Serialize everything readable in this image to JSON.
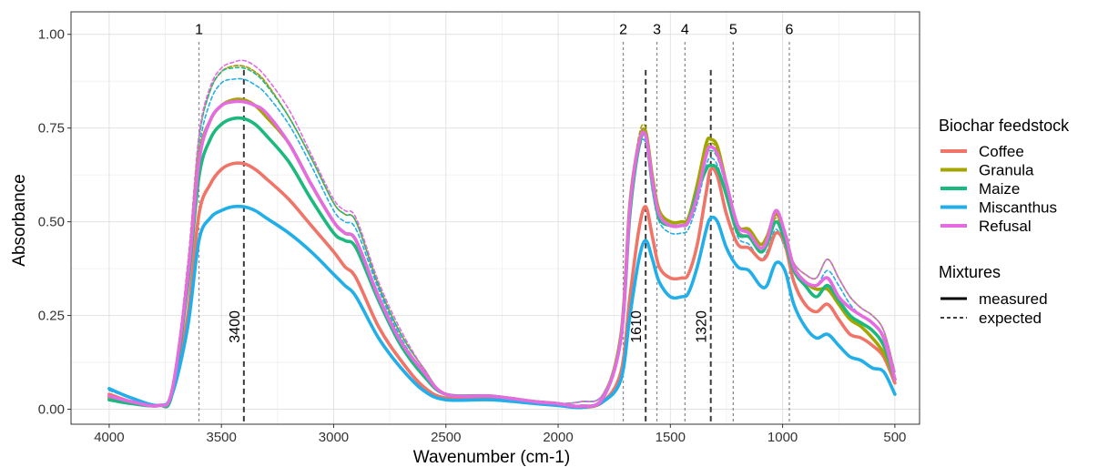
{
  "chart_data": {
    "type": "line",
    "title": "",
    "xlabel": "Wavenumber (cm-1)",
    "ylabel": "Absorbance",
    "xlim": [
      4170,
      390
    ],
    "ylim": [
      -0.04,
      1.06
    ],
    "x_reversed": true,
    "grid": true,
    "x_ticks": [
      4000,
      3500,
      3000,
      2500,
      2000,
      1500,
      1000,
      500
    ],
    "y_ticks": [
      0,
      0.25,
      0.5,
      0.75,
      1.0
    ],
    "x_tick_labels": [
      "4000",
      "3500",
      "3000",
      "2500",
      "2000",
      "1500",
      "1000",
      "500"
    ],
    "y_tick_labels": [
      "0.00",
      "0.25",
      "0.50",
      "0.75",
      "1.00"
    ],
    "legend_placement": "right",
    "legend": {
      "color_title": "Biochar feedstock",
      "linetype_title": "Mixtures",
      "linetypes": [
        {
          "label": "measured",
          "style": "solid"
        },
        {
          "label": "expected",
          "style": "dashed"
        }
      ]
    },
    "vlines_numbered": [
      {
        "label": "1",
        "x": 3600
      },
      {
        "label": "2",
        "x": 1710
      },
      {
        "label": "3",
        "x": 1560
      },
      {
        "label": "4",
        "x": 1435
      },
      {
        "label": "5",
        "x": 1220
      },
      {
        "label": "6",
        "x": 970
      }
    ],
    "vlines_peaks": [
      {
        "label": "3400",
        "x": 3400
      },
      {
        "label": "1610",
        "x": 1610
      },
      {
        "label": "1320",
        "x": 1320
      }
    ],
    "x": [
      4000,
      3900,
      3780,
      3720,
      3650,
      3600,
      3550,
      3500,
      3450,
      3400,
      3350,
      3300,
      3200,
      3100,
      3000,
      2950,
      2900,
      2800,
      2700,
      2600,
      2500,
      2300,
      2100,
      2000,
      1900,
      1800,
      1720,
      1680,
      1640,
      1610,
      1580,
      1550,
      1500,
      1450,
      1420,
      1380,
      1340,
      1320,
      1290,
      1250,
      1200,
      1150,
      1100,
      1070,
      1030,
      990,
      950,
      900,
      850,
      800,
      750,
      700,
      650,
      600,
      550,
      500
    ],
    "series": [
      {
        "name": "Coffee",
        "color": "#F07468",
        "kind": "measured",
        "values": [
          0.04,
          0.02,
          0.01,
          0.04,
          0.25,
          0.52,
          0.6,
          0.64,
          0.655,
          0.655,
          0.64,
          0.615,
          0.56,
          0.49,
          0.42,
          0.38,
          0.35,
          0.22,
          0.13,
          0.06,
          0.03,
          0.03,
          0.02,
          0.015,
          0.005,
          0.02,
          0.1,
          0.3,
          0.48,
          0.54,
          0.46,
          0.38,
          0.35,
          0.35,
          0.36,
          0.44,
          0.58,
          0.64,
          0.62,
          0.52,
          0.44,
          0.43,
          0.4,
          0.41,
          0.47,
          0.44,
          0.34,
          0.28,
          0.26,
          0.28,
          0.24,
          0.2,
          0.19,
          0.17,
          0.14,
          0.07
        ]
      },
      {
        "name": "Granula",
        "color": "#A3A500",
        "kind": "measured",
        "values": [
          0.03,
          0.02,
          0.01,
          0.05,
          0.35,
          0.67,
          0.77,
          0.81,
          0.825,
          0.825,
          0.81,
          0.78,
          0.71,
          0.6,
          0.5,
          0.47,
          0.45,
          0.3,
          0.18,
          0.1,
          0.04,
          0.035,
          0.02,
          0.015,
          0.008,
          0.03,
          0.2,
          0.55,
          0.71,
          0.74,
          0.62,
          0.53,
          0.5,
          0.5,
          0.51,
          0.6,
          0.71,
          0.72,
          0.7,
          0.6,
          0.49,
          0.48,
          0.44,
          0.46,
          0.52,
          0.47,
          0.38,
          0.34,
          0.32,
          0.32,
          0.28,
          0.24,
          0.22,
          0.19,
          0.15,
          0.08
        ]
      },
      {
        "name": "Maize",
        "color": "#1CB97E",
        "kind": "measured",
        "values": [
          0.025,
          0.015,
          0.01,
          0.04,
          0.33,
          0.62,
          0.72,
          0.76,
          0.775,
          0.775,
          0.76,
          0.73,
          0.66,
          0.56,
          0.47,
          0.45,
          0.43,
          0.29,
          0.17,
          0.09,
          0.04,
          0.035,
          0.02,
          0.015,
          0.008,
          0.03,
          0.19,
          0.52,
          0.7,
          0.73,
          0.6,
          0.51,
          0.49,
          0.49,
          0.5,
          0.58,
          0.64,
          0.65,
          0.64,
          0.57,
          0.47,
          0.46,
          0.42,
          0.44,
          0.5,
          0.45,
          0.37,
          0.33,
          0.3,
          0.33,
          0.29,
          0.25,
          0.23,
          0.21,
          0.17,
          0.08
        ]
      },
      {
        "name": "Miscanthus",
        "color": "#22AEE8",
        "kind": "measured",
        "values": [
          0.055,
          0.03,
          0.01,
          0.04,
          0.22,
          0.45,
          0.51,
          0.53,
          0.54,
          0.54,
          0.53,
          0.51,
          0.47,
          0.42,
          0.36,
          0.33,
          0.3,
          0.19,
          0.11,
          0.05,
          0.025,
          0.025,
          0.015,
          0.01,
          0.005,
          0.02,
          0.08,
          0.25,
          0.4,
          0.45,
          0.4,
          0.34,
          0.3,
          0.3,
          0.31,
          0.38,
          0.48,
          0.51,
          0.5,
          0.43,
          0.38,
          0.37,
          0.33,
          0.33,
          0.39,
          0.37,
          0.28,
          0.22,
          0.19,
          0.2,
          0.17,
          0.14,
          0.13,
          0.11,
          0.1,
          0.04
        ]
      },
      {
        "name": "Refusal",
        "color": "#E46BE0",
        "kind": "measured",
        "values": [
          0.035,
          0.02,
          0.01,
          0.05,
          0.35,
          0.66,
          0.77,
          0.81,
          0.82,
          0.82,
          0.81,
          0.79,
          0.71,
          0.6,
          0.5,
          0.47,
          0.45,
          0.3,
          0.18,
          0.1,
          0.04,
          0.035,
          0.02,
          0.015,
          0.008,
          0.03,
          0.19,
          0.54,
          0.71,
          0.73,
          0.61,
          0.52,
          0.49,
          0.49,
          0.5,
          0.57,
          0.68,
          0.7,
          0.68,
          0.6,
          0.49,
          0.47,
          0.43,
          0.45,
          0.53,
          0.47,
          0.38,
          0.34,
          0.33,
          0.35,
          0.3,
          0.27,
          0.25,
          0.23,
          0.19,
          0.08
        ]
      },
      {
        "name": "Coffee",
        "color": "#F07468",
        "kind": "expected",
        "values": [
          0.04,
          0.02,
          0.01,
          0.05,
          0.38,
          0.72,
          0.85,
          0.9,
          0.915,
          0.915,
          0.9,
          0.87,
          0.78,
          0.67,
          0.55,
          0.52,
          0.5,
          0.33,
          0.2,
          0.11,
          0.04,
          0.035,
          0.02,
          0.015,
          0.02,
          0.04,
          0.2,
          0.55,
          0.72,
          0.74,
          0.61,
          0.52,
          0.49,
          0.49,
          0.5,
          0.57,
          0.68,
          0.7,
          0.68,
          0.6,
          0.48,
          0.46,
          0.42,
          0.44,
          0.5,
          0.45,
          0.39,
          0.36,
          0.35,
          0.4,
          0.35,
          0.3,
          0.27,
          0.25,
          0.21,
          0.1
        ]
      },
      {
        "name": "Granula",
        "color": "#A3A500",
        "kind": "expected",
        "values": [
          0.03,
          0.02,
          0.01,
          0.05,
          0.38,
          0.72,
          0.85,
          0.9,
          0.915,
          0.915,
          0.9,
          0.87,
          0.78,
          0.67,
          0.55,
          0.52,
          0.5,
          0.33,
          0.2,
          0.11,
          0.04,
          0.035,
          0.02,
          0.015,
          0.02,
          0.04,
          0.2,
          0.55,
          0.73,
          0.75,
          0.62,
          0.53,
          0.5,
          0.5,
          0.51,
          0.59,
          0.69,
          0.71,
          0.69,
          0.6,
          0.49,
          0.47,
          0.43,
          0.45,
          0.51,
          0.46,
          0.39,
          0.36,
          0.35,
          0.4,
          0.35,
          0.3,
          0.27,
          0.25,
          0.21,
          0.1
        ]
      },
      {
        "name": "Maize",
        "color": "#1CB97E",
        "kind": "expected",
        "values": [
          0.025,
          0.015,
          0.01,
          0.05,
          0.38,
          0.72,
          0.85,
          0.9,
          0.91,
          0.91,
          0.895,
          0.865,
          0.78,
          0.67,
          0.55,
          0.52,
          0.5,
          0.33,
          0.2,
          0.11,
          0.04,
          0.035,
          0.02,
          0.015,
          0.02,
          0.04,
          0.2,
          0.55,
          0.72,
          0.74,
          0.61,
          0.52,
          0.49,
          0.49,
          0.5,
          0.57,
          0.67,
          0.69,
          0.67,
          0.59,
          0.48,
          0.46,
          0.42,
          0.44,
          0.5,
          0.45,
          0.39,
          0.36,
          0.35,
          0.4,
          0.35,
          0.3,
          0.27,
          0.25,
          0.21,
          0.1
        ]
      },
      {
        "name": "Miscanthus",
        "color": "#22AEE8",
        "kind": "expected",
        "values": [
          0.05,
          0.03,
          0.01,
          0.05,
          0.36,
          0.69,
          0.82,
          0.87,
          0.88,
          0.88,
          0.865,
          0.84,
          0.76,
          0.65,
          0.53,
          0.5,
          0.48,
          0.32,
          0.19,
          0.1,
          0.04,
          0.035,
          0.02,
          0.015,
          0.02,
          0.04,
          0.19,
          0.52,
          0.69,
          0.71,
          0.58,
          0.5,
          0.47,
          0.47,
          0.48,
          0.55,
          0.65,
          0.67,
          0.65,
          0.57,
          0.46,
          0.44,
          0.4,
          0.42,
          0.48,
          0.43,
          0.37,
          0.34,
          0.33,
          0.37,
          0.33,
          0.28,
          0.25,
          0.23,
          0.19,
          0.09
        ]
      },
      {
        "name": "Refusal",
        "color": "#E46BE0",
        "kind": "expected",
        "values": [
          0.035,
          0.02,
          0.01,
          0.05,
          0.39,
          0.73,
          0.86,
          0.91,
          0.925,
          0.93,
          0.915,
          0.885,
          0.8,
          0.68,
          0.56,
          0.53,
          0.51,
          0.34,
          0.21,
          0.11,
          0.04,
          0.035,
          0.02,
          0.015,
          0.02,
          0.04,
          0.2,
          0.55,
          0.72,
          0.74,
          0.61,
          0.52,
          0.49,
          0.49,
          0.5,
          0.58,
          0.68,
          0.7,
          0.68,
          0.6,
          0.48,
          0.46,
          0.42,
          0.44,
          0.5,
          0.45,
          0.39,
          0.36,
          0.35,
          0.4,
          0.35,
          0.3,
          0.27,
          0.25,
          0.21,
          0.1
        ]
      }
    ]
  }
}
